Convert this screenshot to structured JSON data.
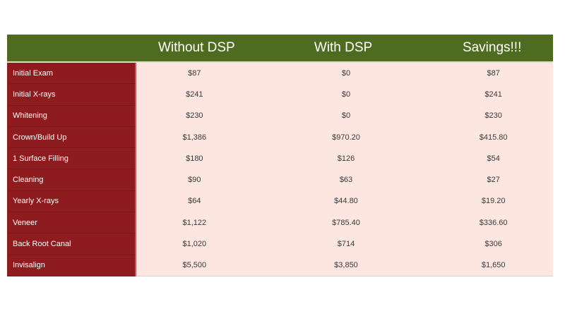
{
  "headers": [
    "",
    "Without DSP",
    "With DSP",
    "Savings!!!"
  ],
  "rows": [
    {
      "label": "Initial Exam",
      "without": "$87",
      "with": "$0",
      "savings": "$87"
    },
    {
      "label": "Initial X-rays",
      "without": "$241",
      "with": "$0",
      "savings": "$241"
    },
    {
      "label": "Whitening",
      "without": "$230",
      "with": "$0",
      "savings": "$230"
    },
    {
      "label": "Crown/Build Up",
      "without": "$1,386",
      "with": "$970.20",
      "savings": "$415.80"
    },
    {
      "label": "1 Surface Filling",
      "without": "$180",
      "with": "$126",
      "savings": "$54"
    },
    {
      "label": "Cleaning",
      "without": "$90",
      "with": "$63",
      "savings": "$27"
    },
    {
      "label": "Yearly X-rays",
      "without": "$64",
      "with": "$44.80",
      "savings": "$19.20"
    },
    {
      "label": "Veneer",
      "without": "$1,122",
      "with": "$785.40",
      "savings": "$336.60"
    },
    {
      "label": "Back Root Canal",
      "without": "$1,020",
      "with": "$714",
      "savings": "$306"
    },
    {
      "label": "Invisalign",
      "without": "$5,500",
      "with": "$3,850",
      "savings": "$1,650"
    }
  ],
  "colors": {
    "header_bg": "#4f6b1f",
    "label_bg": "#8e1b1e",
    "value_bg": "#fde6e0"
  }
}
